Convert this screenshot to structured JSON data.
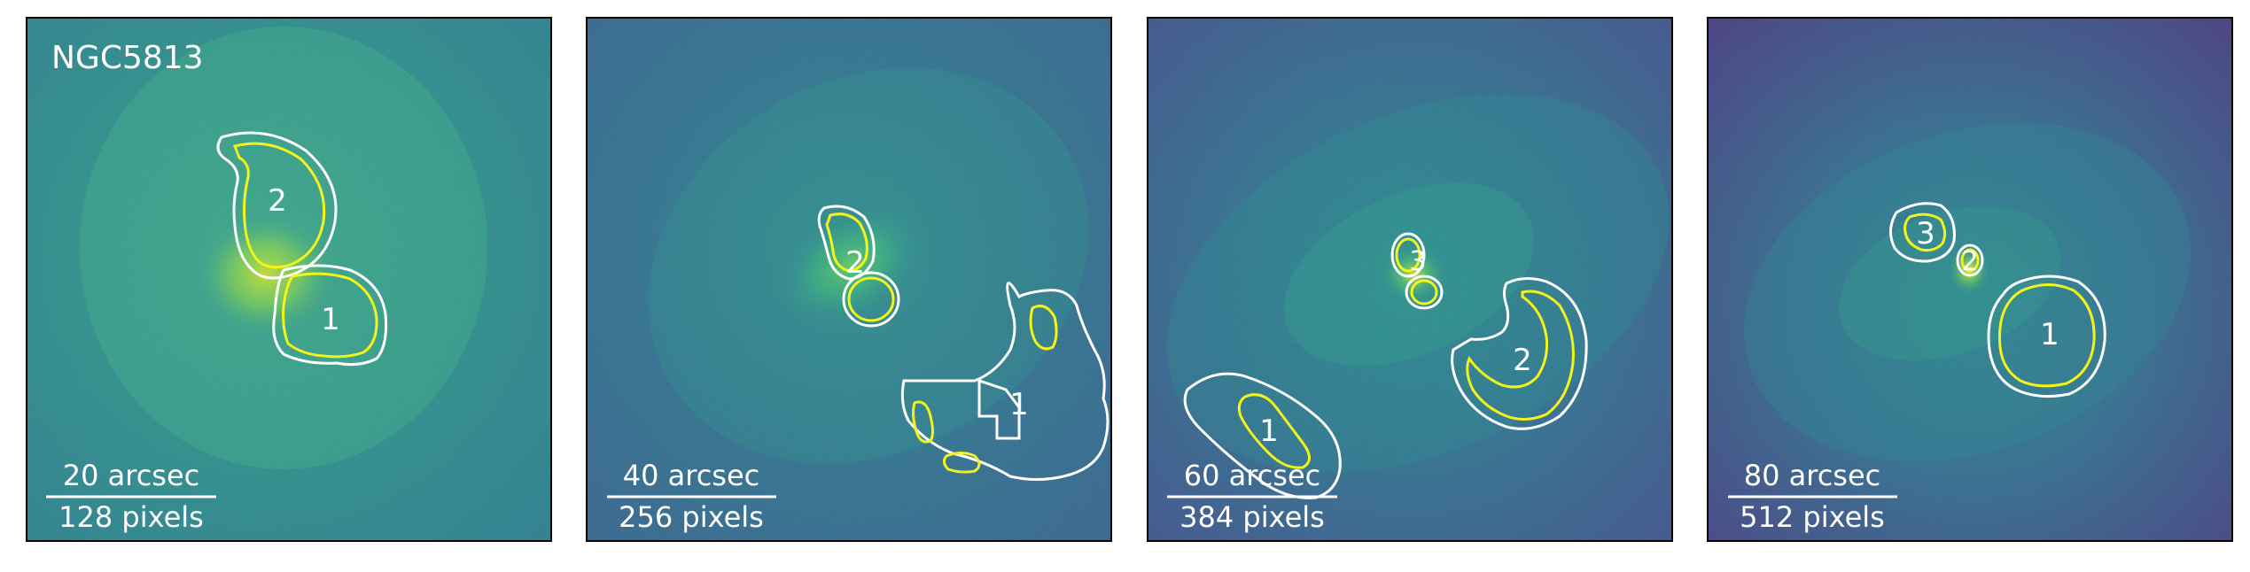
{
  "figure": {
    "galaxy_name": "NGC5813",
    "contour_colors": {
      "outer": "#ffffff",
      "inner": "#f4f41a"
    },
    "colormap": "viridis",
    "panels": [
      {
        "scale_top": "20 arcsec",
        "scale_bottom": "128 pixels",
        "cavities": [
          "2",
          "1"
        ]
      },
      {
        "scale_top": "40 arcsec",
        "scale_bottom": "256 pixels",
        "cavities": [
          "2",
          "1"
        ]
      },
      {
        "scale_top": "60 arcsec",
        "scale_bottom": "384 pixels",
        "cavities": [
          "3",
          "1",
          "2"
        ]
      },
      {
        "scale_top": "80 arcsec",
        "scale_bottom": "512 pixels",
        "cavities": [
          "3",
          "2",
          "1"
        ]
      }
    ]
  }
}
